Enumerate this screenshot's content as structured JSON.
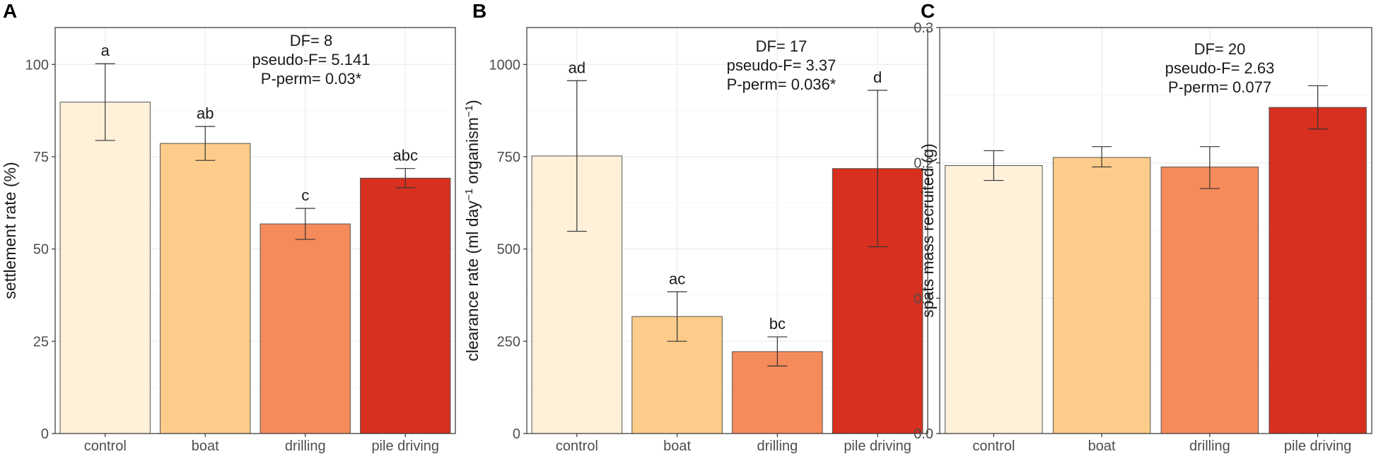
{
  "colors": {
    "control": "#FEF0D9",
    "boat": "#FDCC8A",
    "drilling": "#F58B5A",
    "pile driving": "#D7301F"
  },
  "chart_data": [
    {
      "panel": "A",
      "type": "bar",
      "categories": [
        "control",
        "boat",
        "drilling",
        "pile driving"
      ],
      "values": [
        89.8,
        78.6,
        56.8,
        69.2
      ],
      "error_low": [
        79.4,
        74.0,
        52.6,
        66.6
      ],
      "error_high": [
        100.2,
        83.2,
        61.0,
        71.8
      ],
      "letters": [
        "a",
        "ab",
        "c",
        "abc"
      ],
      "ylabel": "settlement rate (%)",
      "ylim": [
        0,
        110
      ],
      "yticks": [
        0,
        25,
        50,
        75,
        100
      ],
      "ytick_labels": [
        "0",
        "25",
        "50",
        "75",
        "100"
      ],
      "stats": [
        "DF= 8",
        "pseudo-F= 5.141",
        "P-perm= 0.03*"
      ],
      "grid": true
    },
    {
      "panel": "B",
      "type": "bar",
      "categories": [
        "control",
        "boat",
        "drilling",
        "pile driving"
      ],
      "values": [
        752,
        317,
        222,
        718
      ],
      "error_low": [
        548,
        250,
        183,
        506
      ],
      "error_high": [
        956,
        384,
        262,
        930
      ],
      "letters": [
        "ad",
        "ac",
        "bc",
        "d"
      ],
      "ylabel_main": "clearance rate (ml day",
      "ylabel_sup1": "−1",
      "ylabel_mid": " organism",
      "ylabel_sup2": "−1",
      "ylabel_end": ")",
      "ylim": [
        0,
        1100
      ],
      "yticks": [
        0,
        250,
        500,
        750,
        1000
      ],
      "ytick_labels": [
        "0",
        "250",
        "500",
        "750",
        "1000"
      ],
      "stats": [
        "DF= 17",
        "pseudo-F= 3.37",
        "P-perm= 0.036*"
      ],
      "grid": true
    },
    {
      "panel": "C",
      "type": "bar",
      "categories": [
        "control",
        "boat",
        "drilling",
        "pile driving"
      ],
      "values": [
        0.198,
        0.204,
        0.197,
        0.241
      ],
      "error_low": [
        0.187,
        0.197,
        0.181,
        0.225
      ],
      "error_high": [
        0.209,
        0.212,
        0.212,
        0.257
      ],
      "letters": [
        "",
        "",
        "",
        ""
      ],
      "ylabel": "spats mass recruited (g)",
      "ylim": [
        0,
        0.3
      ],
      "yticks": [
        0.0,
        0.1,
        0.2,
        0.3
      ],
      "ytick_labels": [
        "0.0",
        "0.1",
        "0.2",
        "0.3"
      ],
      "stats": [
        "DF= 20",
        "pseudo-F= 2.63",
        "P-perm= 0.077"
      ],
      "grid": true
    }
  ]
}
